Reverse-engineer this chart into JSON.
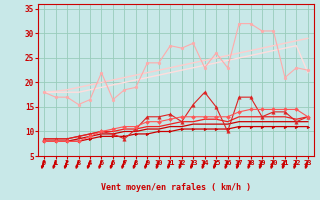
{
  "background_color": "#c8e8e8",
  "grid_color": "#99ccbb",
  "xlabel": "Vent moyen/en rafales ( km/h )",
  "xlabel_color": "#cc0000",
  "tick_color": "#cc0000",
  "axis_color": "#cc0000",
  "xlim": [
    -0.5,
    23.5
  ],
  "ylim": [
    5,
    36
  ],
  "yticks": [
    5,
    10,
    15,
    20,
    25,
    30,
    35
  ],
  "xticks": [
    0,
    1,
    2,
    3,
    4,
    5,
    6,
    7,
    8,
    9,
    10,
    11,
    12,
    13,
    14,
    15,
    16,
    17,
    18,
    19,
    20,
    21,
    22,
    23
  ],
  "series": [
    {
      "x": [
        0,
        1,
        2,
        3,
        4,
        5,
        6,
        7,
        8,
        9,
        10,
        11,
        12,
        13,
        14,
        15,
        16,
        17,
        18,
        19,
        20,
        21,
        22,
        23
      ],
      "y": [
        18,
        17,
        17,
        15.5,
        16.5,
        22,
        16.5,
        18.5,
        19,
        24,
        24,
        27.5,
        27,
        28,
        23,
        26,
        23,
        32,
        32,
        30.5,
        30.5,
        21,
        23,
        22.5
      ],
      "color": "#ffaaaa",
      "lw": 0.8,
      "marker": "o",
      "ms": 2.0,
      "zorder": 3
    },
    {
      "x": [
        0,
        1,
        2,
        3,
        4,
        5,
        6,
        7,
        8,
        9,
        10,
        11,
        12,
        13,
        14,
        15,
        16,
        17,
        18,
        19,
        20,
        21,
        22,
        23
      ],
      "y": [
        18,
        18.2,
        18.5,
        19,
        19.5,
        20,
        20.5,
        21,
        21.5,
        22,
        22.5,
        23,
        23.5,
        24,
        24.5,
        25,
        25.5,
        26,
        26.5,
        27,
        27.5,
        28,
        28.5,
        29
      ],
      "color": "#ffcccc",
      "lw": 1.0,
      "marker": null,
      "ms": 0,
      "zorder": 2
    },
    {
      "x": [
        0,
        1,
        2,
        3,
        4,
        5,
        6,
        7,
        8,
        9,
        10,
        11,
        12,
        13,
        14,
        15,
        16,
        17,
        18,
        19,
        20,
        21,
        22,
        23
      ],
      "y": [
        18,
        18,
        18,
        18,
        18.5,
        19,
        19.5,
        20,
        20.5,
        21,
        21.5,
        22,
        22.5,
        23,
        23.5,
        24,
        24.5,
        25,
        25.5,
        26,
        26.5,
        27,
        27.5,
        22
      ],
      "color": "#ffdddd",
      "lw": 1.0,
      "marker": null,
      "ms": 0,
      "zorder": 2
    },
    {
      "x": [
        0,
        1,
        2,
        3,
        4,
        5,
        6,
        7,
        8,
        9,
        10,
        11,
        12,
        13,
        14,
        15,
        16,
        17,
        18,
        19,
        20,
        21,
        22,
        23
      ],
      "y": [
        8.5,
        8.5,
        8.5,
        9,
        9.5,
        10,
        9.5,
        8.5,
        10.5,
        13,
        13,
        13.5,
        12,
        15.5,
        18,
        15,
        10,
        17,
        17,
        13,
        14,
        14,
        12,
        13
      ],
      "color": "#dd2222",
      "lw": 0.8,
      "marker": "^",
      "ms": 2.5,
      "zorder": 4
    },
    {
      "x": [
        0,
        1,
        2,
        3,
        4,
        5,
        6,
        7,
        8,
        9,
        10,
        11,
        12,
        13,
        14,
        15,
        16,
        17,
        18,
        19,
        20,
        21,
        22,
        23
      ],
      "y": [
        8,
        8,
        8,
        8,
        9,
        10,
        10.5,
        11,
        11,
        12,
        12,
        12.5,
        13,
        13,
        13,
        13,
        13,
        14,
        14.5,
        14.5,
        14.5,
        14.5,
        14.5,
        13
      ],
      "color": "#ff5555",
      "lw": 0.8,
      "marker": "D",
      "ms": 2.0,
      "zorder": 4
    },
    {
      "x": [
        0,
        1,
        2,
        3,
        4,
        5,
        6,
        7,
        8,
        9,
        10,
        11,
        12,
        13,
        14,
        15,
        16,
        17,
        18,
        19,
        20,
        21,
        22,
        23
      ],
      "y": [
        8.5,
        8.5,
        8.5,
        9,
        9.5,
        10,
        10,
        10.5,
        10.5,
        11,
        11,
        11.5,
        12,
        12,
        12.5,
        12.5,
        12,
        13,
        13,
        13,
        13,
        13,
        12.5,
        13
      ],
      "color": "#ee2222",
      "lw": 0.9,
      "marker": null,
      "ms": 0,
      "zorder": 3
    },
    {
      "x": [
        0,
        1,
        2,
        3,
        4,
        5,
        6,
        7,
        8,
        9,
        10,
        11,
        12,
        13,
        14,
        15,
        16,
        17,
        18,
        19,
        20,
        21,
        22,
        23
      ],
      "y": [
        8,
        8,
        8,
        8.5,
        9,
        9.5,
        9.5,
        10,
        10,
        10.5,
        10.5,
        11,
        11,
        11.5,
        11.5,
        11.5,
        11.5,
        12,
        12,
        12,
        12,
        12,
        12,
        12
      ],
      "color": "#cc0000",
      "lw": 0.9,
      "marker": null,
      "ms": 0,
      "zorder": 3
    },
    {
      "x": [
        0,
        1,
        2,
        3,
        4,
        5,
        6,
        7,
        8,
        9,
        10,
        11,
        12,
        13,
        14,
        15,
        16,
        17,
        18,
        19,
        20,
        21,
        22,
        23
      ],
      "y": [
        8,
        8,
        8,
        8,
        8.5,
        9,
        9,
        9,
        9.5,
        9.5,
        10,
        10,
        10.5,
        10.5,
        10.5,
        10.5,
        10.5,
        11,
        11,
        11,
        11,
        11,
        11,
        11
      ],
      "color": "#cc0000",
      "lw": 0.9,
      "marker": ">",
      "ms": 2.0,
      "zorder": 3
    }
  ],
  "arrow_color": "#cc0000"
}
